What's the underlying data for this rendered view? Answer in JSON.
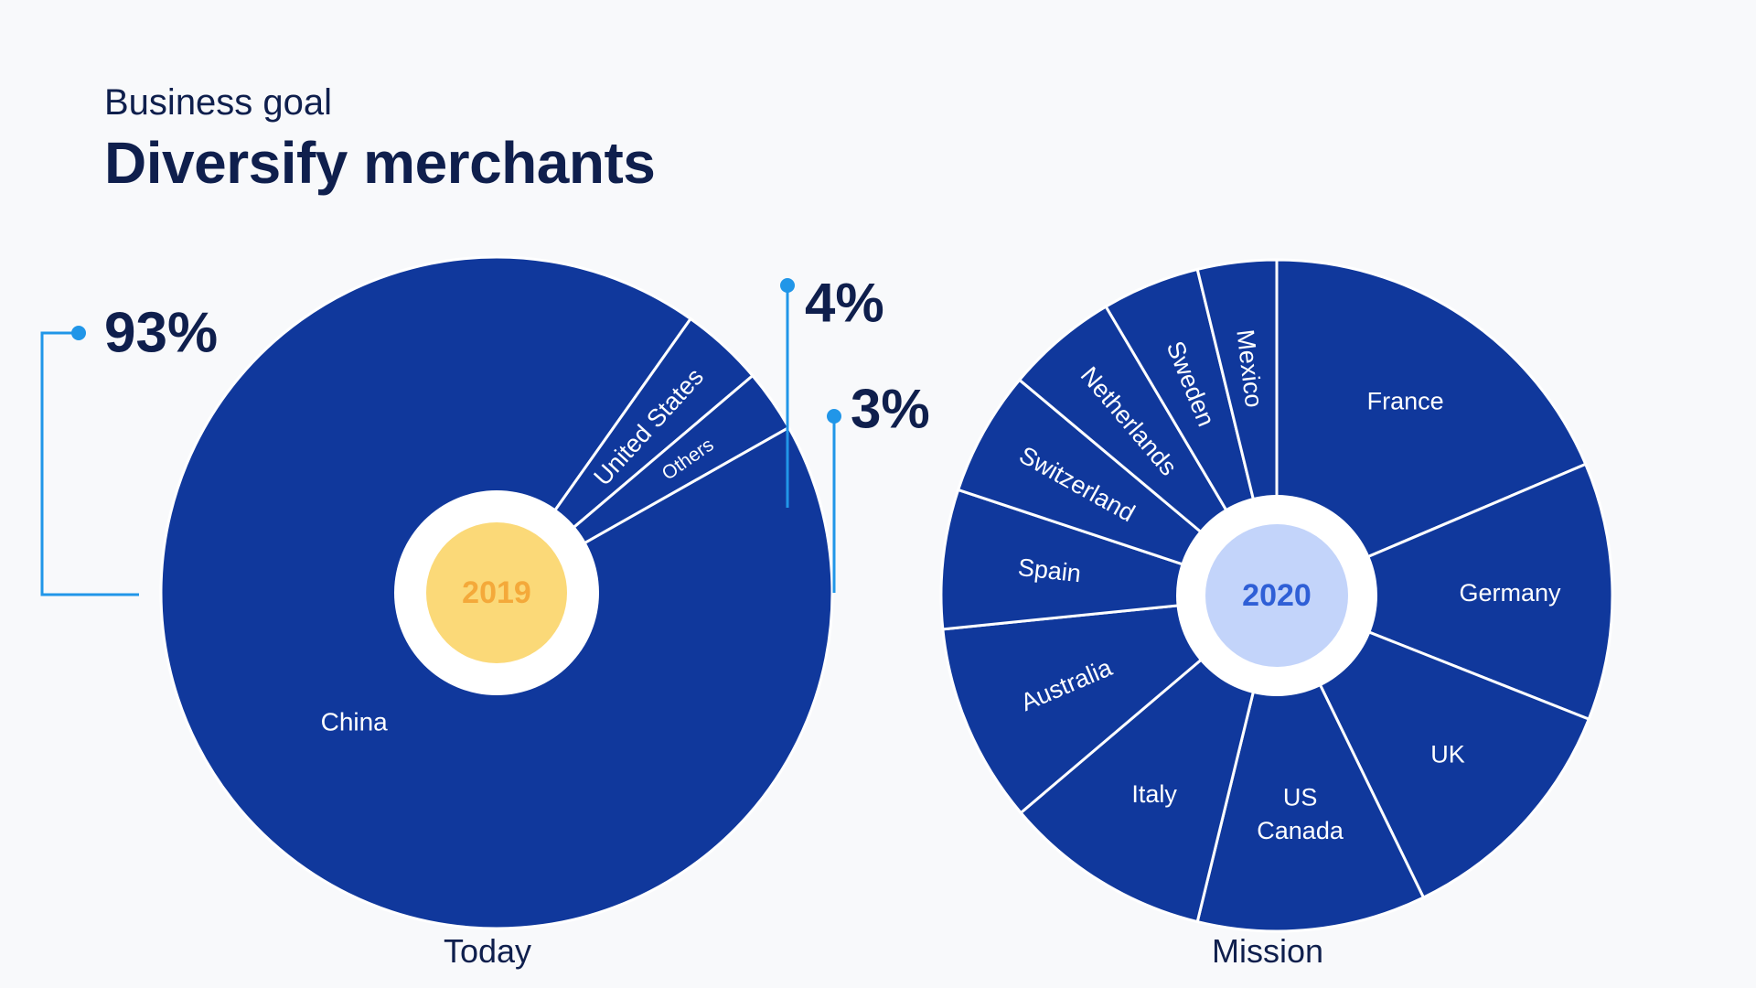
{
  "header": {
    "subtitle": "Business goal",
    "title": "Diversify merchants"
  },
  "colors": {
    "slice": "#10389c",
    "divider": "#ffffff",
    "callout": "#2196e8",
    "text_dark": "#0f1f4d",
    "center_2019": "#fbd978",
    "center_2019_text": "#f4a93a",
    "center_2020": "#c3d4fa",
    "center_2020_text": "#2f5fd6"
  },
  "chart_data": [
    {
      "type": "pie",
      "caption": "Today",
      "center_label": "2019",
      "slices": [
        {
          "label": "China",
          "value": 93
        },
        {
          "label": "United States",
          "value": 4
        },
        {
          "label": "Others",
          "value": 3
        }
      ],
      "callouts": [
        {
          "target": "China",
          "text": "93%"
        },
        {
          "target": "United States",
          "text": "4%"
        },
        {
          "target": "Others",
          "text": "3%"
        }
      ]
    },
    {
      "type": "pie",
      "caption": "Mission",
      "center_label": "2020",
      "slices": [
        {
          "label": "France",
          "value": 18.6
        },
        {
          "label": "Germany",
          "value": 12.4
        },
        {
          "label": "UK",
          "value": 11.8
        },
        {
          "label": "US\nCanada",
          "value": 11.0
        },
        {
          "label": "Italy",
          "value": 10.0
        },
        {
          "label": "Australia",
          "value": 9.6
        },
        {
          "label": "Spain",
          "value": 6.7
        },
        {
          "label": "Switzerland",
          "value": 6.0
        },
        {
          "label": "Netherlands",
          "value": 5.4
        },
        {
          "label": "Sweden",
          "value": 4.7
        },
        {
          "label": "Mexico",
          "value": 3.8
        }
      ]
    }
  ]
}
